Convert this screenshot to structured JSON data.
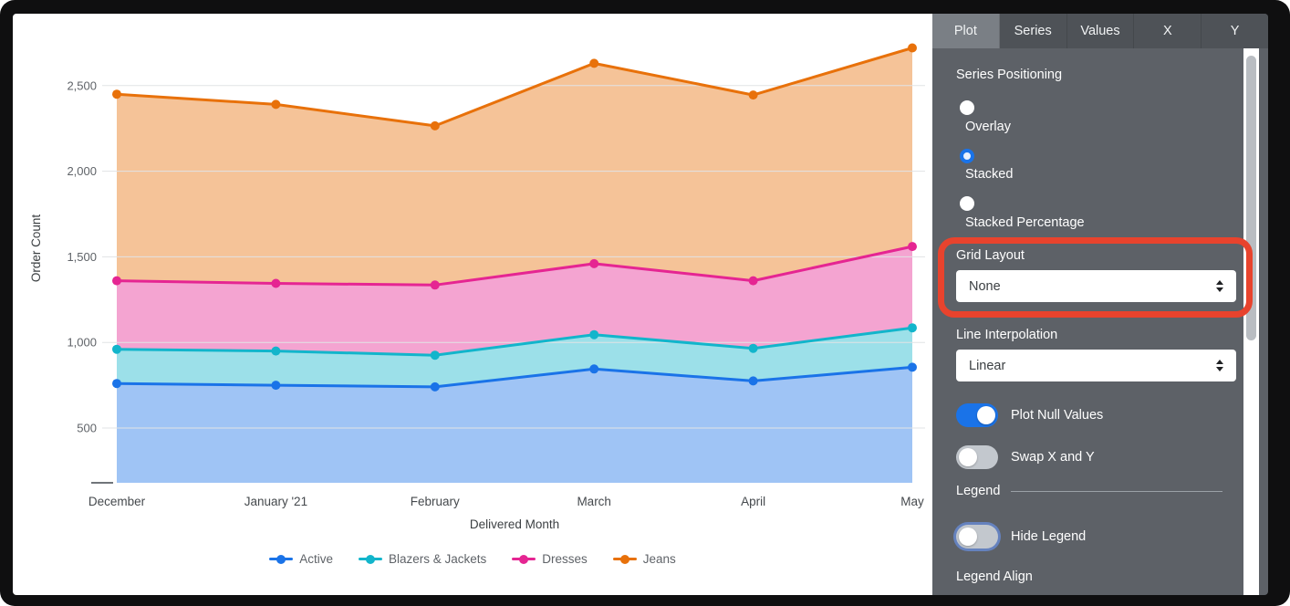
{
  "chart_data": {
    "type": "area",
    "stacked": true,
    "title": "",
    "xlabel": "Delivered Month",
    "ylabel": "Order Count",
    "categories": [
      "December",
      "January '21",
      "February",
      "March",
      "April",
      "May"
    ],
    "series": [
      {
        "name": "Active",
        "color": "#1A73E8",
        "values": [
          760,
          750,
          740,
          845,
          775,
          855
        ]
      },
      {
        "name": "Blazers & Jackets",
        "color": "#12B5CB",
        "values": [
          200,
          200,
          185,
          200,
          190,
          230
        ]
      },
      {
        "name": "Dresses",
        "color": "#E52592",
        "values": [
          400,
          395,
          410,
          415,
          395,
          475
        ]
      },
      {
        "name": "Jeans",
        "color": "#E8710A",
        "values": [
          1090,
          1045,
          930,
          1170,
          1085,
          1160
        ]
      }
    ],
    "stacked_totals_note": "cumulative tops: Active 760/750/740/845/775/855; +Blazers 960/950/925/1045/965/1085; +Dresses 1360/1345/1335/1460/1360/1560; +Jeans 2450/2390/2265/2630/2445/2720",
    "y_ticks": [
      500,
      1000,
      1500,
      2000,
      2500
    ],
    "ylim": [
      180,
      2920
    ],
    "grid": true,
    "legend_position": "bottom",
    "fill_opacity": 0.42
  },
  "panel": {
    "tabs": [
      {
        "label": "Plot",
        "active": true
      },
      {
        "label": "Series",
        "active": false
      },
      {
        "label": "Values",
        "active": false
      },
      {
        "label": "X",
        "active": false
      },
      {
        "label": "Y",
        "active": false
      }
    ],
    "series_positioning": {
      "label": "Series Positioning",
      "options": [
        {
          "label": "Overlay",
          "selected": false
        },
        {
          "label": "Stacked",
          "selected": true
        },
        {
          "label": "Stacked Percentage",
          "selected": false
        }
      ]
    },
    "grid_layout": {
      "label": "Grid Layout",
      "value": "None",
      "highlighted": true
    },
    "line_interpolation": {
      "label": "Line Interpolation",
      "value": "Linear"
    },
    "plot_null_values": {
      "label": "Plot Null Values",
      "on": true
    },
    "swap_x_y": {
      "label": "Swap X and Y",
      "on": false
    },
    "legend": {
      "header": "Legend",
      "hide_legend": {
        "label": "Hide Legend",
        "on": false,
        "focus_ring": true
      },
      "legend_align": {
        "label": "Legend Align"
      }
    },
    "annotation": {
      "color": "#E8432D",
      "meaning": "highlight around Grid Layout control"
    }
  }
}
